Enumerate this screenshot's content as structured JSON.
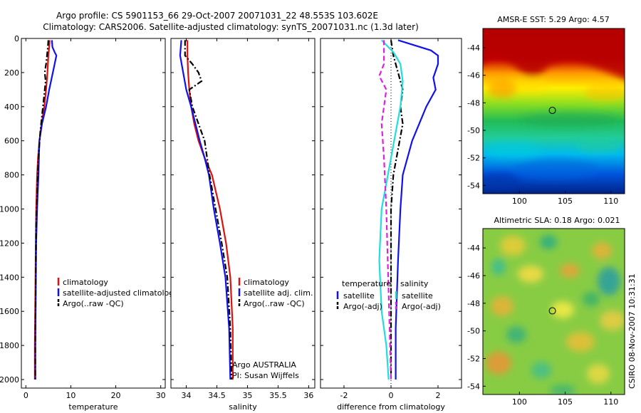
{
  "title": {
    "line1": "Argo profile: CS 5901153_66 29-Oct-2007 20071031_22 48.553S 103.602E",
    "line2": "Climatology: CARS2006. Satellite-adjusted climatology: synTS_20071031.nc (1.3d later)"
  },
  "credit": "CSIRO 08-Nov-2007 10:31:31",
  "colors": {
    "red": "#dd1111",
    "blue": "#1111ee",
    "black": "#000000",
    "cyan": "#22dddd",
    "magenta": "#dd22dd"
  },
  "chart_data": [
    {
      "type": "line",
      "xlabel": "temperature",
      "xlim": [
        -1,
        31
      ],
      "ylim": [
        2050,
        0
      ],
      "xticks": [
        0,
        10,
        20,
        30
      ],
      "yticks": [
        0,
        200,
        400,
        600,
        800,
        1000,
        1200,
        1400,
        1600,
        1800,
        2000
      ],
      "series": [
        {
          "name": "climatology",
          "color": "red",
          "dash": "solid",
          "x": [
            5.3,
            5.2,
            5.0,
            4.8,
            4.5,
            4.1,
            3.5,
            3.0,
            2.7,
            2.5,
            2.3,
            2.2,
            2.1,
            2.0,
            2.0
          ],
          "y": [
            10,
            50,
            100,
            200,
            300,
            400,
            500,
            600,
            700,
            800,
            1000,
            1200,
            1500,
            1800,
            2000
          ]
        },
        {
          "name": "satellite-adjusted climatology",
          "color": "blue",
          "dash": "solid",
          "x": [
            5.8,
            5.9,
            6.4,
            6.8,
            6.0,
            5.2,
            4.5,
            3.6,
            3.0,
            2.8,
            2.5,
            2.3,
            2.2,
            2.1,
            2.1
          ],
          "y": [
            10,
            50,
            80,
            100,
            200,
            300,
            400,
            500,
            600,
            800,
            1000,
            1200,
            1500,
            1800,
            2000
          ]
        },
        {
          "name": "Argo(..raw -QC)",
          "color": "black",
          "dash": "dashdot",
          "x": [
            5.0,
            4.9,
            4.7,
            4.5,
            4.2,
            4.4,
            4.0,
            3.6,
            3.2,
            2.8,
            2.5,
            2.3,
            2.2,
            2.1,
            2.1
          ],
          "y": [
            10,
            50,
            100,
            150,
            200,
            250,
            350,
            450,
            550,
            700,
            900,
            1100,
            1400,
            1800,
            2000
          ]
        }
      ],
      "legend": {
        "position": "lower-right",
        "items": [
          "climatology",
          "satellite-adjusted climatology",
          "Argo(..raw -QC)"
        ]
      }
    },
    {
      "type": "line",
      "xlabel": "salinity",
      "xlim": [
        33.75,
        36.1
      ],
      "ylim": [
        2050,
        0
      ],
      "xticks": [
        34,
        34.5,
        35,
        35.5,
        36
      ],
      "series": [
        {
          "name": "climatology",
          "color": "red",
          "dash": "solid",
          "x": [
            34.02,
            34.02,
            34.03,
            34.05,
            34.08,
            34.13,
            34.2,
            34.3,
            34.42,
            34.55,
            34.65,
            34.72,
            34.76,
            34.76
          ],
          "y": [
            10,
            100,
            200,
            300,
            400,
            500,
            600,
            700,
            800,
            1000,
            1200,
            1400,
            1700,
            2000
          ]
        },
        {
          "name": "satellite adj. clim.",
          "color": "blue",
          "dash": "solid",
          "x": [
            33.92,
            33.9,
            33.95,
            34.0,
            34.08,
            34.15,
            34.22,
            34.3,
            34.37,
            34.45,
            34.55,
            34.64,
            34.7,
            34.72
          ],
          "y": [
            10,
            100,
            200,
            300,
            400,
            500,
            600,
            700,
            800,
            1000,
            1200,
            1400,
            1700,
            2000
          ]
        },
        {
          "name": "Argo(..raw -QC)",
          "color": "black",
          "dash": "dashdot",
          "x": [
            33.98,
            33.98,
            34.1,
            34.2,
            34.25,
            34.05,
            34.1,
            34.2,
            34.3,
            34.38,
            34.48,
            34.58,
            34.67,
            34.72,
            34.74
          ],
          "y": [
            10,
            100,
            150,
            200,
            250,
            300,
            400,
            500,
            600,
            800,
            1000,
            1200,
            1400,
            1700,
            2000
          ]
        }
      ],
      "legend": {
        "position": "lower-right",
        "items": [
          "climatology",
          "satellite adj. clim.",
          "Argo(..raw -QC)"
        ]
      },
      "annotation": {
        "line1": "Argo AUSTRALIA",
        "line2": "PI: Susan Wijffels"
      }
    },
    {
      "type": "line",
      "xlabel": "difference from climatology",
      "xlim": [
        -3,
        3
      ],
      "ylim": [
        2050,
        0
      ],
      "xticks": [
        -2,
        0,
        2
      ],
      "series": [
        {
          "name": "temperature satellite",
          "color": "blue",
          "dash": "solid",
          "x": [
            0.3,
            1.7,
            2.0,
            2.0,
            1.8,
            1.9,
            1.5,
            1.2,
            0.9,
            0.7,
            0.5,
            0.4,
            0.3,
            0.2,
            0.2
          ],
          "y": [
            10,
            70,
            100,
            150,
            230,
            300,
            400,
            500,
            600,
            700,
            800,
            1000,
            1300,
            1700,
            2000
          ]
        },
        {
          "name": "temperature Argo(-adj)",
          "color": "black",
          "dash": "dashdot",
          "x": [
            0.0,
            0.1,
            0.3,
            0.5,
            0.4,
            0.5,
            0.3,
            0.1,
            0.0,
            0.0,
            0.0,
            0.0,
            0.0
          ],
          "y": [
            10,
            100,
            200,
            300,
            400,
            500,
            650,
            800,
            1000,
            1200,
            1400,
            1700,
            2000
          ]
        },
        {
          "name": "salinity satellite",
          "color": "cyan",
          "dash": "solid",
          "x": [
            -0.4,
            0.1,
            0.4,
            0.5,
            0.4,
            0.2,
            0.0,
            -0.2,
            -0.4,
            -0.5,
            -0.4,
            -0.2,
            -0.1
          ],
          "y": [
            10,
            80,
            150,
            250,
            400,
            550,
            700,
            850,
            1000,
            1300,
            1600,
            1800,
            2000
          ]
        },
        {
          "name": "salinity Argo(-adj)",
          "color": "magenta",
          "dash": "dashed",
          "x": [
            -0.3,
            -0.3,
            -0.5,
            -0.2,
            -0.4,
            -0.3,
            -0.2,
            -0.1,
            0.0
          ],
          "y": [
            10,
            150,
            220,
            300,
            500,
            700,
            1000,
            1500,
            2000
          ]
        }
      ],
      "legend": {
        "position": "lower",
        "groups": [
          {
            "header": "temperature",
            "items": [
              "satellite",
              "Argo(-adj)"
            ]
          },
          {
            "header": "salinity",
            "items": [
              "satellite",
              "Argo(-adj)"
            ]
          }
        ]
      }
    },
    {
      "type": "heatmap",
      "title": "AMSR-E SST: 5.29 Argo: 4.57",
      "xlim": [
        96,
        111.5
      ],
      "ylim": [
        -54.6,
        -42.6
      ],
      "xticks": [
        100,
        105,
        110
      ],
      "yticks": [
        -44,
        -46,
        -48,
        -50,
        -52,
        -54
      ],
      "marker": {
        "lon": 103.6,
        "lat": -48.55
      }
    },
    {
      "type": "heatmap",
      "title": "Altimetric SLA: 0.18 Argo: 0.021",
      "xlim": [
        96,
        111.5
      ],
      "ylim": [
        -54.6,
        -42.6
      ],
      "xticks": [
        100,
        105,
        110
      ],
      "yticks": [
        -44,
        -46,
        -48,
        -50,
        -52,
        -54
      ],
      "marker": {
        "lon": 103.6,
        "lat": -48.55
      }
    }
  ]
}
